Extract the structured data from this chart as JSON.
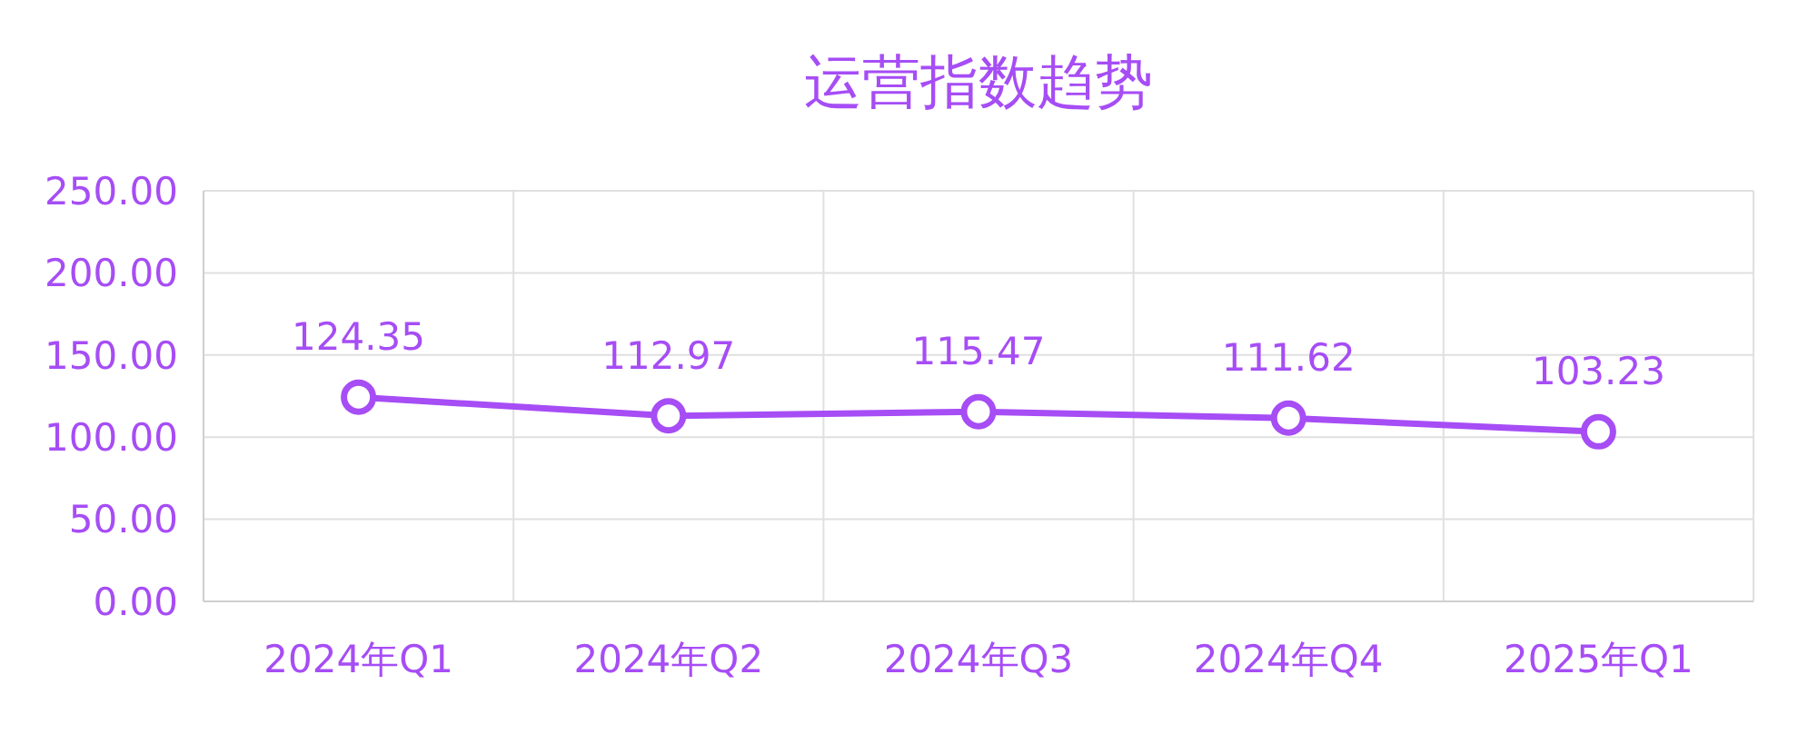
{
  "chart_data": {
    "type": "line",
    "title": "运营指数趋势",
    "categories": [
      "2024年Q1",
      "2024年Q2",
      "2024年Q3",
      "2024年Q4",
      "2025年Q1"
    ],
    "series": [
      {
        "color": "#a64df5",
        "values": [
          124.35,
          112.97,
          115.47,
          111.62,
          103.23
        ]
      }
    ],
    "ylim": [
      0,
      250
    ],
    "yticks": [
      {
        "value": 0,
        "label": "0.00"
      },
      {
        "value": 50,
        "label": "50.00"
      },
      {
        "value": 100,
        "label": "100.00"
      },
      {
        "value": 150,
        "label": "150.00"
      },
      {
        "value": 200,
        "label": "200.00"
      },
      {
        "value": 250,
        "label": "250.00"
      }
    ],
    "grid": true,
    "marker": "circle",
    "line_style": "solid",
    "data_labels": true
  }
}
